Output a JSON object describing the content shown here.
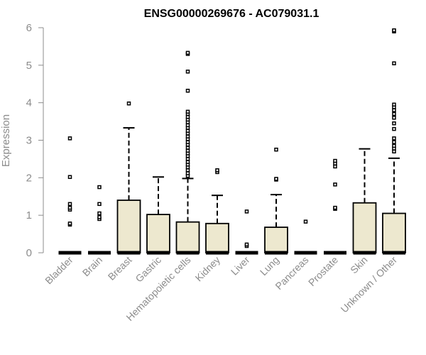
{
  "chart_data": {
    "type": "box",
    "title": "ENSG00000269676 - AC079031.1",
    "xlabel": "",
    "ylabel": "Expression",
    "ylim": [
      0,
      6
    ],
    "yticks": [
      "0",
      "1",
      "2",
      "3",
      "4",
      "5",
      "6"
    ],
    "grid": false,
    "colors": {
      "box_fill": "#ede8cf",
      "stroke": "#000000",
      "axis": "#8c8c8c"
    },
    "categories": [
      "Bladder",
      "Brain",
      "Breast",
      "Gastric",
      "Hematopoietic cells",
      "Kidney",
      "Liver",
      "Lung",
      "Pancreas",
      "Prostate",
      "Skin",
      "Unknown / Other"
    ],
    "boxes": [
      {
        "category": "Bladder",
        "q1": 0,
        "median": 0,
        "q3": 0,
        "whisker_low": 0,
        "whisker_high": 0,
        "outliers": [
          0.75,
          0.78,
          1.15,
          1.2,
          1.3,
          2.02,
          3.05
        ]
      },
      {
        "category": "Brain",
        "q1": 0,
        "median": 0,
        "q3": 0,
        "whisker_low": 0,
        "whisker_high": 0,
        "outliers": [
          0.9,
          0.95,
          1.05,
          1.3,
          1.75
        ]
      },
      {
        "category": "Breast",
        "q1": 0,
        "median": 0,
        "q3": 1.4,
        "whisker_low": 0,
        "whisker_high": 3.33,
        "outliers": [
          3.98
        ]
      },
      {
        "category": "Gastric",
        "q1": 0,
        "median": 0,
        "q3": 1.02,
        "whisker_low": 0,
        "whisker_high": 2.02,
        "outliers": []
      },
      {
        "category": "Hematopoietic cells",
        "q1": 0,
        "median": 0,
        "q3": 0.82,
        "whisker_low": 0,
        "whisker_high": 1.98,
        "outliers": [
          2.05,
          2.12,
          2.2,
          2.28,
          2.35,
          2.42,
          2.5,
          2.58,
          2.65,
          2.72,
          2.8,
          2.88,
          2.95,
          3.03,
          3.1,
          3.18,
          3.25,
          3.33,
          3.4,
          3.48,
          3.55,
          3.62,
          3.7,
          3.76,
          4.32,
          4.83,
          5.3,
          5.33
        ]
      },
      {
        "category": "Kidney",
        "q1": 0,
        "median": 0,
        "q3": 0.78,
        "whisker_low": 0,
        "whisker_high": 1.53,
        "outliers": [
          2.15,
          2.2
        ]
      },
      {
        "category": "Liver",
        "q1": 0,
        "median": 0,
        "q3": 0,
        "whisker_low": 0,
        "whisker_high": 0,
        "outliers": [
          0.18,
          0.22,
          1.1
        ]
      },
      {
        "category": "Lung",
        "q1": 0,
        "median": 0,
        "q3": 0.68,
        "whisker_low": 0,
        "whisker_high": 1.55,
        "outliers": [
          1.95,
          1.97,
          2.75
        ]
      },
      {
        "category": "Pancreas",
        "q1": 0,
        "median": 0,
        "q3": 0,
        "whisker_low": 0,
        "whisker_high": 0,
        "outliers": [
          0.83
        ]
      },
      {
        "category": "Prostate",
        "q1": 0,
        "median": 0,
        "q3": 0,
        "whisker_low": 0,
        "whisker_high": 0,
        "outliers": [
          1.17,
          1.2,
          1.82,
          2.3,
          2.38,
          2.45
        ]
      },
      {
        "category": "Skin",
        "q1": 0,
        "median": 0,
        "q3": 1.33,
        "whisker_low": 0,
        "whisker_high": 2.77,
        "outliers": []
      },
      {
        "category": "Unknown / Other",
        "q1": 0,
        "median": 0,
        "q3": 1.05,
        "whisker_low": 0,
        "whisker_high": 2.52,
        "outliers": [
          2.7,
          2.78,
          2.85,
          2.95,
          3.05,
          3.3,
          3.45,
          3.6,
          3.7,
          3.8,
          3.88,
          3.95,
          5.05,
          5.9,
          5.93
        ]
      }
    ]
  }
}
